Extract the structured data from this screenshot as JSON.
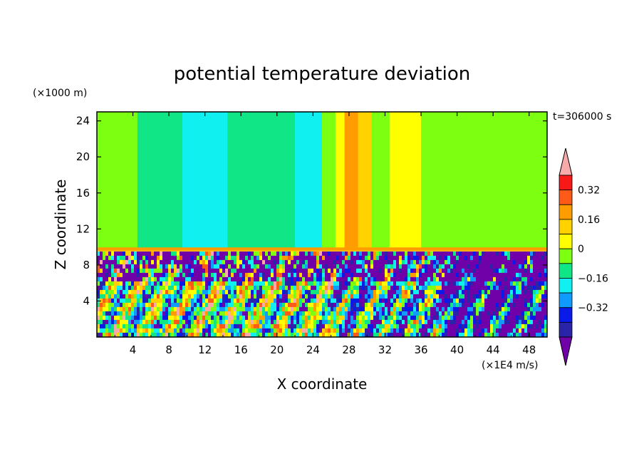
{
  "chart_data": {
    "type": "heatmap",
    "title": "potential temperature deviation",
    "time_label": "t=306000 s",
    "xlabel": "X coordinate",
    "x_unit": "(×1E4 m/s)",
    "ylabel": "Z coordinate",
    "y_unit": "(×1000 m)",
    "xlim": [
      0,
      50
    ],
    "ylim": [
      0,
      25
    ],
    "x_ticks": [
      4,
      8,
      12,
      16,
      20,
      24,
      28,
      32,
      36,
      40,
      44,
      48
    ],
    "y_ticks": [
      4,
      8,
      12,
      16,
      20,
      24
    ],
    "colorbar": {
      "levels": [
        -0.4,
        -0.32,
        -0.24,
        -0.16,
        -0.08,
        0,
        0.08,
        0.16,
        0.24,
        0.32,
        0.4
      ],
      "labeled_levels": [
        0.32,
        0.16,
        0,
        -0.16,
        -0.32
      ],
      "labels": [
        "0.32",
        "0.16",
        "0",
        "−0.16",
        "−0.32"
      ],
      "colors": [
        "#7000a8",
        "#2a24a8",
        "#0a1ae8",
        "#109cff",
        "#10f0f0",
        "#10e686",
        "#7cff10",
        "#ffff00",
        "#ffd200",
        "#ff9c00",
        "#ff5a18",
        "#f81818",
        "#f8aaaa"
      ],
      "extend": "both"
    },
    "upper_layer_bands": [
      {
        "x": [
          0,
          4.5
        ],
        "value": 0.04
      },
      {
        "x": [
          4.5,
          9.5
        ],
        "value": -0.04
      },
      {
        "x": [
          9.5,
          14.5
        ],
        "value": -0.12
      },
      {
        "x": [
          14.5,
          22
        ],
        "value": -0.04
      },
      {
        "x": [
          22,
          25
        ],
        "value": -0.12
      },
      {
        "x": [
          25,
          26.5
        ],
        "value": 0.04
      },
      {
        "x": [
          26.5,
          27.5
        ],
        "value": 0.12
      },
      {
        "x": [
          27.5,
          29
        ],
        "value": 0.28
      },
      {
        "x": [
          29,
          30.5
        ],
        "value": 0.2
      },
      {
        "x": [
          30.5,
          32.5
        ],
        "value": 0.04
      },
      {
        "x": [
          32.5,
          36
        ],
        "value": 0.12
      },
      {
        "x": [
          36,
          38
        ],
        "value": 0.04
      },
      {
        "x": [
          38,
          50
        ],
        "value": 0.04
      }
    ],
    "inversion_layer_z": 9.5
  }
}
